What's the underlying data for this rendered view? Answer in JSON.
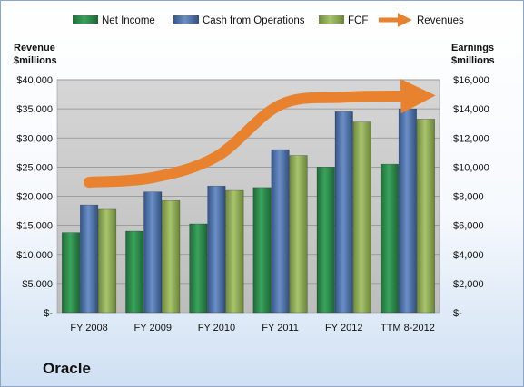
{
  "chart_data": {
    "type": "bar",
    "company_label": "Oracle",
    "categories": [
      "FY 2008",
      "FY 2009",
      "FY 2010",
      "FY 2011",
      "FY 2012",
      "TTM 8-2012"
    ],
    "left_axis": {
      "title_line1": "Revenue",
      "title_line2": "$millions",
      "ylim": [
        0,
        40000
      ],
      "ticks": [
        {
          "value": 0,
          "label": "$-"
        },
        {
          "value": 5000,
          "label": "$5,000"
        },
        {
          "value": 10000,
          "label": "$10,000"
        },
        {
          "value": 15000,
          "label": "$15,000"
        },
        {
          "value": 20000,
          "label": "$20,000"
        },
        {
          "value": 25000,
          "label": "$25,000"
        },
        {
          "value": 30000,
          "label": "$30,000"
        },
        {
          "value": 35000,
          "label": "$35,000"
        },
        {
          "value": 40000,
          "label": "$40,000"
        }
      ]
    },
    "right_axis": {
      "title_line1": "Earnings",
      "title_line2": "$millions",
      "ylim": [
        0,
        16000
      ],
      "ticks": [
        {
          "value": 0,
          "label": "$-"
        },
        {
          "value": 2000,
          "label": "$2,000"
        },
        {
          "value": 4000,
          "label": "$4,000"
        },
        {
          "value": 6000,
          "label": "$6,000"
        },
        {
          "value": 8000,
          "label": "$8,000"
        },
        {
          "value": 10000,
          "label": "$10,000"
        },
        {
          "value": 12000,
          "label": "$12,000"
        },
        {
          "value": 14000,
          "label": "$14,000"
        },
        {
          "value": 16000,
          "label": "$16,000"
        }
      ]
    },
    "series": [
      {
        "name": "Net Income",
        "type": "bar",
        "axis": "right",
        "color": "#2e8b4e",
        "values": [
          5500,
          5600,
          6100,
          8600,
          10000,
          10200
        ]
      },
      {
        "name": "Cash from Operations",
        "type": "bar",
        "axis": "right",
        "color": "#4a6fa8",
        "values": [
          7400,
          8300,
          8700,
          11200,
          13800,
          14000
        ]
      },
      {
        "name": "FCF",
        "type": "bar",
        "axis": "right",
        "color": "#8fae55",
        "values": [
          7100,
          7700,
          8400,
          10800,
          13100,
          13300
        ]
      },
      {
        "name": "Revenues",
        "type": "line",
        "axis": "left",
        "color": "#e8822e",
        "values": [
          22400,
          23200,
          26800,
          35700,
          37000,
          37200
        ]
      }
    ],
    "grid": true,
    "legend_position": "top"
  }
}
